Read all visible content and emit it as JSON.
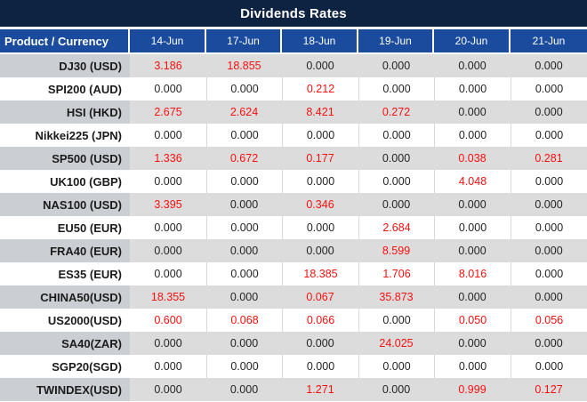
{
  "title": "Dividends Rates",
  "zero_value": "0.000",
  "highlight_rule": "non-zero values rendered in red",
  "colors": {
    "title_bar_bg": "#0E2342",
    "header_bg": "#1A4B9D",
    "gray_row_label_bg": "#CBCED3",
    "gray_row_value_bg": "#DCDCDC",
    "nonzero_red": "#FA0F0F",
    "value_black": "#242424"
  },
  "table": {
    "header": [
      "Product / Currency",
      "14-Jun",
      "17-Jun",
      "18-Jun",
      "19-Jun",
      "20-Jun",
      "21-Jun"
    ],
    "rows": [
      {
        "product": "DJ30 (USD)",
        "values": [
          "3.186",
          "18.855",
          "0.000",
          "0.000",
          "0.000",
          "0.000"
        ]
      },
      {
        "product": "SPI200 (AUD)",
        "values": [
          "0.000",
          "0.000",
          "0.212",
          "0.000",
          "0.000",
          "0.000"
        ]
      },
      {
        "product": "HSI (HKD)",
        "values": [
          "2.675",
          "2.624",
          "8.421",
          "0.272",
          "0.000",
          "0.000"
        ]
      },
      {
        "product": "Nikkei225 (JPN)",
        "values": [
          "0.000",
          "0.000",
          "0.000",
          "0.000",
          "0.000",
          "0.000"
        ]
      },
      {
        "product": "SP500 (USD)",
        "values": [
          "1.336",
          "0.672",
          "0.177",
          "0.000",
          "0.038",
          "0.281"
        ]
      },
      {
        "product": "UK100 (GBP)",
        "values": [
          "0.000",
          "0.000",
          "0.000",
          "0.000",
          "4.048",
          "0.000"
        ]
      },
      {
        "product": "NAS100 (USD)",
        "values": [
          "3.395",
          "0.000",
          "0.346",
          "0.000",
          "0.000",
          "0.000"
        ]
      },
      {
        "product": "EU50 (EUR)",
        "values": [
          "0.000",
          "0.000",
          "0.000",
          "2.684",
          "0.000",
          "0.000"
        ]
      },
      {
        "product": "FRA40 (EUR)",
        "values": [
          "0.000",
          "0.000",
          "0.000",
          "8.599",
          "0.000",
          "0.000"
        ]
      },
      {
        "product": "ES35 (EUR)",
        "values": [
          "0.000",
          "0.000",
          "18.385",
          "1.706",
          "8.016",
          "0.000"
        ]
      },
      {
        "product": "CHINA50(USD)",
        "values": [
          "18.355",
          "0.000",
          "0.067",
          "35.873",
          "0.000",
          "0.000"
        ]
      },
      {
        "product": "US2000(USD)",
        "values": [
          "0.600",
          "0.068",
          "0.066",
          "0.000",
          "0.050",
          "0.056"
        ]
      },
      {
        "product": "SA40(ZAR)",
        "values": [
          "0.000",
          "0.000",
          "0.000",
          "24.025",
          "0.000",
          "0.000"
        ]
      },
      {
        "product": "SGP20(SGD)",
        "values": [
          "0.000",
          "0.000",
          "0.000",
          "0.000",
          "0.000",
          "0.000"
        ]
      },
      {
        "product": "TWINDEX(USD)",
        "values": [
          "0.000",
          "0.000",
          "1.271",
          "0.000",
          "0.999",
          "0.127"
        ]
      }
    ]
  },
  "chart_data": {
    "type": "table",
    "title": "Dividends Rates",
    "columns": [
      "Product / Currency",
      "14-Jun",
      "17-Jun",
      "18-Jun",
      "19-Jun",
      "20-Jun",
      "21-Jun"
    ],
    "rows": [
      [
        "DJ30 (USD)",
        3.186,
        18.855,
        0.0,
        0.0,
        0.0,
        0.0
      ],
      [
        "SPI200 (AUD)",
        0.0,
        0.0,
        0.212,
        0.0,
        0.0,
        0.0
      ],
      [
        "HSI (HKD)",
        2.675,
        2.624,
        8.421,
        0.272,
        0.0,
        0.0
      ],
      [
        "Nikkei225 (JPN)",
        0.0,
        0.0,
        0.0,
        0.0,
        0.0,
        0.0
      ],
      [
        "SP500 (USD)",
        1.336,
        0.672,
        0.177,
        0.0,
        0.038,
        0.281
      ],
      [
        "UK100 (GBP)",
        0.0,
        0.0,
        0.0,
        0.0,
        4.048,
        0.0
      ],
      [
        "NAS100 (USD)",
        3.395,
        0.0,
        0.346,
        0.0,
        0.0,
        0.0
      ],
      [
        "EU50 (EUR)",
        0.0,
        0.0,
        0.0,
        2.684,
        0.0,
        0.0
      ],
      [
        "FRA40 (EUR)",
        0.0,
        0.0,
        0.0,
        8.599,
        0.0,
        0.0
      ],
      [
        "ES35 (EUR)",
        0.0,
        0.0,
        18.385,
        1.706,
        8.016,
        0.0
      ],
      [
        "CHINA50(USD)",
        18.355,
        0.0,
        0.067,
        35.873,
        0.0,
        0.0
      ],
      [
        "US2000(USD)",
        0.6,
        0.068,
        0.066,
        0.0,
        0.05,
        0.056
      ],
      [
        "SA40(ZAR)",
        0.0,
        0.0,
        0.0,
        24.025,
        0.0,
        0.0
      ],
      [
        "SGP20(SGD)",
        0.0,
        0.0,
        0.0,
        0.0,
        0.0,
        0.0
      ],
      [
        "TWINDEX(USD)",
        0.0,
        0.0,
        1.271,
        0.0,
        0.999,
        0.127
      ]
    ]
  }
}
